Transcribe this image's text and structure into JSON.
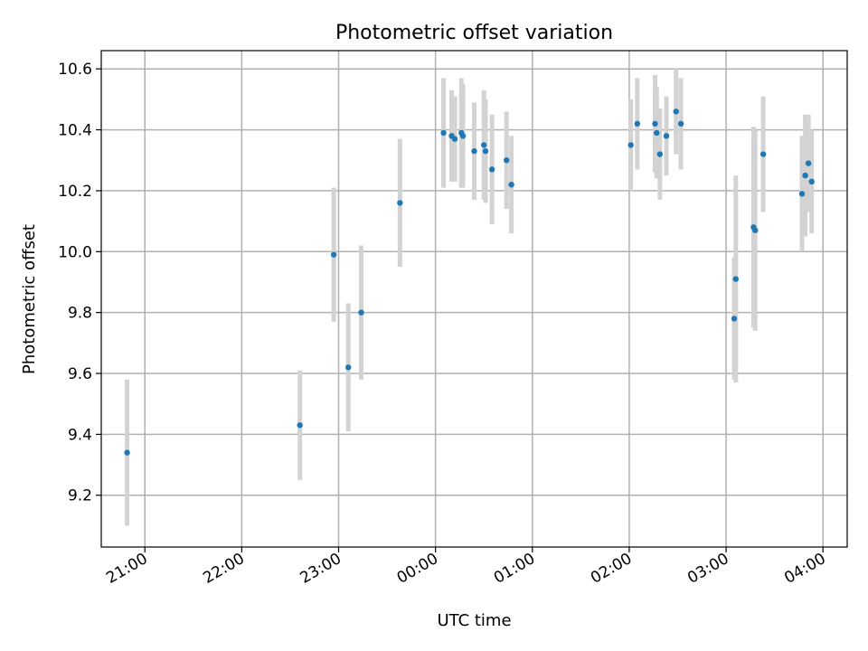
{
  "chart_data": {
    "type": "scatter",
    "title": "Photometric offset variation",
    "xlabel": "UTC time",
    "ylabel": "Photometric offset",
    "x_range": [
      "20:33",
      "04:15"
    ],
    "y_range": [
      9.03,
      10.66
    ],
    "x_ticks": [
      "21:00",
      "22:00",
      "23:00",
      "00:00",
      "01:00",
      "02:00",
      "03:00",
      "04:00"
    ],
    "y_ticks": [
      "9.2",
      "9.4",
      "9.6",
      "9.8",
      "10.0",
      "10.2",
      "10.4",
      "10.6"
    ],
    "grid": true,
    "colors": {
      "points": "#1f77b4",
      "error_bars": "#d3d3d3"
    },
    "points": [
      {
        "t": "20:49",
        "y": 9.34,
        "err": 0.24
      },
      {
        "t": "22:36",
        "y": 9.43,
        "err": 0.18
      },
      {
        "t": "22:57",
        "y": 9.99,
        "err": 0.22
      },
      {
        "t": "23:06",
        "y": 9.62,
        "err": 0.21
      },
      {
        "t": "23:14",
        "y": 9.8,
        "err": 0.22
      },
      {
        "t": "23:38",
        "y": 10.16,
        "err": 0.21
      },
      {
        "t": "00:05",
        "y": 10.39,
        "err": 0.18
      },
      {
        "t": "00:10",
        "y": 10.38,
        "err": 0.15
      },
      {
        "t": "00:12",
        "y": 10.37,
        "err": 0.14
      },
      {
        "t": "00:16",
        "y": 10.39,
        "err": 0.18
      },
      {
        "t": "00:17",
        "y": 10.38,
        "err": 0.17
      },
      {
        "t": "00:24",
        "y": 10.33,
        "err": 0.16
      },
      {
        "t": "00:30",
        "y": 10.35,
        "err": 0.18
      },
      {
        "t": "00:31",
        "y": 10.33,
        "err": 0.17
      },
      {
        "t": "00:35",
        "y": 10.27,
        "err": 0.18
      },
      {
        "t": "00:44",
        "y": 10.3,
        "err": 0.16
      },
      {
        "t": "00:47",
        "y": 10.22,
        "err": 0.16
      },
      {
        "t": "02:01",
        "y": 10.35,
        "err": 0.15
      },
      {
        "t": "02:05",
        "y": 10.42,
        "err": 0.15
      },
      {
        "t": "02:16",
        "y": 10.42,
        "err": 0.16
      },
      {
        "t": "02:17",
        "y": 10.39,
        "err": 0.15
      },
      {
        "t": "02:19",
        "y": 10.32,
        "err": 0.15
      },
      {
        "t": "02:23",
        "y": 10.38,
        "err": 0.13
      },
      {
        "t": "02:29",
        "y": 10.46,
        "err": 0.14
      },
      {
        "t": "02:32",
        "y": 10.42,
        "err": 0.15
      },
      {
        "t": "03:05",
        "y": 9.78,
        "err": 0.2
      },
      {
        "t": "03:06",
        "y": 9.91,
        "err": 0.34
      },
      {
        "t": "03:17",
        "y": 10.08,
        "err": 0.33
      },
      {
        "t": "03:18",
        "y": 10.07,
        "err": 0.33
      },
      {
        "t": "03:23",
        "y": 10.32,
        "err": 0.19
      },
      {
        "t": "03:47",
        "y": 10.19,
        "err": 0.19
      },
      {
        "t": "03:49",
        "y": 10.25,
        "err": 0.2
      },
      {
        "t": "03:51",
        "y": 10.29,
        "err": 0.16
      },
      {
        "t": "03:53",
        "y": 10.23,
        "err": 0.17
      }
    ]
  }
}
